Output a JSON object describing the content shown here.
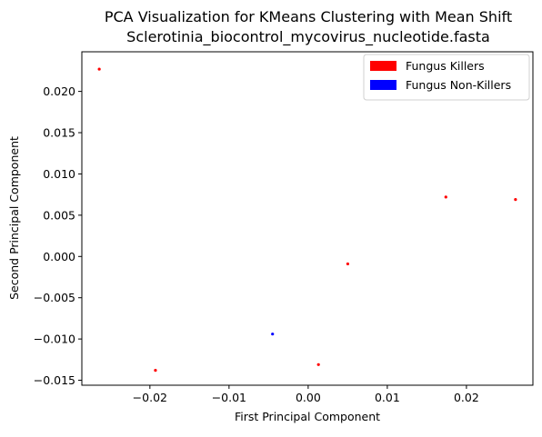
{
  "chart_data": {
    "type": "scatter",
    "title": "PCA Visualization for KMeans Clustering with Mean Shift",
    "subtitle": "Sclerotinia_biocontrol_mycovirus_nucleotide.fasta",
    "xlabel": "First Principal Component",
    "ylabel": "Second Principal Component",
    "xlim": [
      -0.0286,
      0.0284
    ],
    "ylim": [
      -0.0156,
      0.0248
    ],
    "xticks": [
      -0.02,
      -0.01,
      0.0,
      0.01,
      0.02
    ],
    "xtick_labels": [
      "−0.02",
      "−0.01",
      "0.00",
      "0.01",
      "0.02"
    ],
    "yticks": [
      -0.015,
      -0.01,
      -0.005,
      0.0,
      0.005,
      0.01,
      0.015,
      0.02
    ],
    "ytick_labels": [
      "−0.015",
      "−0.010",
      "−0.005",
      "0.000",
      "0.005",
      "0.010",
      "0.015",
      "0.020"
    ],
    "grid": false,
    "legend_position": "top-right",
    "series": [
      {
        "name": "Fungus Killers",
        "color": "#ff0000",
        "points": [
          {
            "x": -0.0264,
            "y": 0.0227
          },
          {
            "x": 0.0174,
            "y": 0.0072
          },
          {
            "x": 0.0262,
            "y": 0.0069
          },
          {
            "x": 0.005,
            "y": -0.0009
          },
          {
            "x": 0.0013,
            "y": -0.0131
          },
          {
            "x": -0.0193,
            "y": -0.0138
          }
        ]
      },
      {
        "name": "Fungus Non-Killers",
        "color": "#0000ff",
        "points": [
          {
            "x": -0.0045,
            "y": -0.0094
          }
        ]
      }
    ]
  }
}
